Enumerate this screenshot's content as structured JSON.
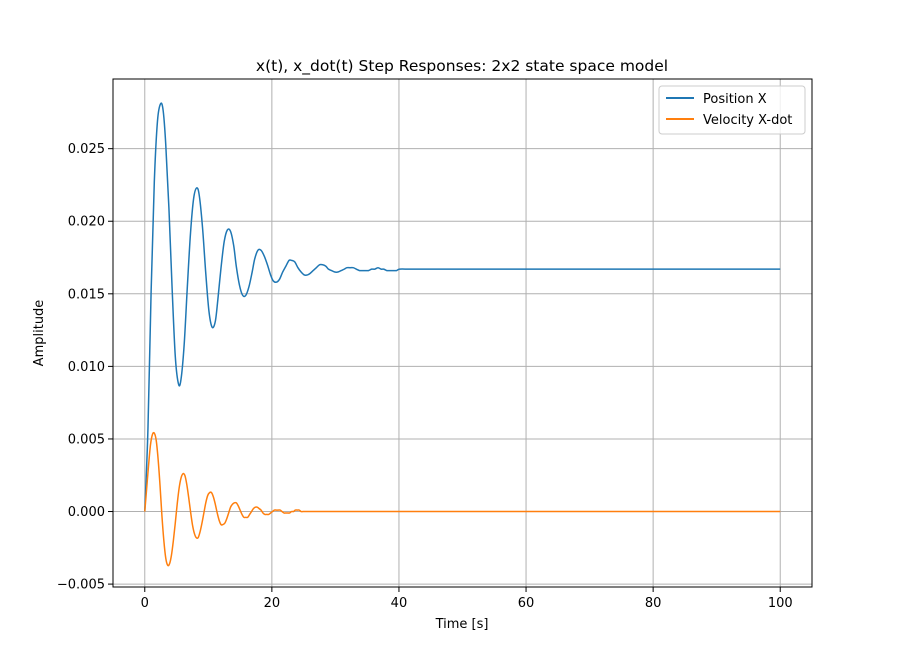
{
  "chart_data": {
    "type": "line",
    "title": "x(t), x_dot(t) Step Responses: 2x2 state space model",
    "xlabel": "Time [s]",
    "ylabel": "Amplitude",
    "xlim": [
      -5,
      105
    ],
    "ylim": [
      -0.0052,
      0.0298
    ],
    "xticks": [
      0,
      20,
      40,
      60,
      80,
      100
    ],
    "xtick_labels": [
      "0",
      "20",
      "40",
      "60",
      "80",
      "100"
    ],
    "yticks": [
      -0.005,
      0.0,
      0.005,
      0.01,
      0.015,
      0.02,
      0.025
    ],
    "ytick_labels": [
      "−0.005",
      "0.000",
      "0.005",
      "0.010",
      "0.015",
      "0.020",
      "0.025"
    ],
    "grid": true,
    "legend_position": "top-right",
    "series": [
      {
        "name": "Position X",
        "color": "#1f77b4",
        "x": [
          0,
          0.5,
          1.0,
          1.5,
          2.0,
          2.5,
          2.9,
          3.3,
          3.8,
          4.3,
          4.8,
          5.3,
          5.7,
          6.2,
          6.7,
          7.2,
          7.7,
          8.2,
          8.6,
          9.1,
          9.6,
          10.1,
          10.6,
          11.1,
          11.5,
          12.0,
          12.5,
          13.0,
          13.5,
          14.0,
          14.4,
          14.9,
          15.4,
          15.9,
          16.4,
          16.9,
          17.3,
          17.8,
          18.3,
          18.8,
          19.3,
          19.8,
          20.2,
          20.7,
          21.2,
          21.7,
          22.2,
          22.7,
          23.1,
          23.6,
          24.1,
          24.6,
          25.1,
          25.6,
          26.0,
          26.5,
          27.0,
          27.5,
          28.0,
          28.5,
          28.9,
          29.4,
          29.9,
          30.4,
          30.9,
          31.4,
          31.8,
          32.3,
          32.8,
          33.3,
          33.8,
          34.3,
          34.7,
          35.2,
          35.7,
          36.2,
          36.7,
          37.2,
          37.6,
          38.1,
          38.6,
          39.1,
          39.6,
          40.1,
          41.5,
          43.0,
          44.5,
          46.0,
          47.5,
          49.0,
          50.5,
          52.0,
          53.5,
          55.0,
          57.0,
          60.0,
          65.0,
          70.0,
          80.0,
          90.0,
          100.0
        ],
        "values": [
          0.0,
          0.0057,
          0.0152,
          0.0227,
          0.0269,
          0.0281,
          0.0276,
          0.0253,
          0.0209,
          0.0154,
          0.0107,
          0.0088,
          0.0091,
          0.0115,
          0.0155,
          0.0192,
          0.0216,
          0.0223,
          0.0217,
          0.0195,
          0.0164,
          0.0138,
          0.0127,
          0.0131,
          0.0146,
          0.0168,
          0.0186,
          0.0194,
          0.0193,
          0.0183,
          0.0169,
          0.0156,
          0.0149,
          0.0149,
          0.0155,
          0.0165,
          0.0174,
          0.018,
          0.018,
          0.0176,
          0.017,
          0.0163,
          0.0159,
          0.0158,
          0.016,
          0.0165,
          0.0169,
          0.0173,
          0.0173,
          0.0172,
          0.0168,
          0.0165,
          0.0163,
          0.0163,
          0.0164,
          0.0166,
          0.0168,
          0.017,
          0.017,
          0.0169,
          0.0167,
          0.0166,
          0.0165,
          0.0165,
          0.0166,
          0.0167,
          0.0168,
          0.0168,
          0.0168,
          0.0167,
          0.0166,
          0.0166,
          0.0166,
          0.0166,
          0.0167,
          0.0167,
          0.0168,
          0.0167,
          0.0167,
          0.0166,
          0.0166,
          0.0166,
          0.0166,
          0.0167,
          0.0167,
          0.0167,
          0.0167,
          0.0167,
          0.0167,
          0.0167,
          0.0167,
          0.0167,
          0.0167,
          0.0167,
          0.0167,
          0.0167,
          0.0167,
          0.0167,
          0.0167,
          0.0167,
          0.0167
        ]
      },
      {
        "name": "Velocity X-dot",
        "color": "#ff7f0e",
        "x": [
          0,
          0.3,
          0.6,
          0.9,
          1.2,
          1.5,
          1.8,
          2.1,
          2.4,
          2.7,
          3.0,
          3.3,
          3.6,
          3.9,
          4.2,
          4.5,
          4.8,
          5.1,
          5.4,
          5.7,
          6.0,
          6.3,
          6.6,
          6.9,
          7.2,
          7.5,
          7.8,
          8.1,
          8.4,
          8.7,
          9.0,
          9.3,
          9.6,
          9.9,
          10.2,
          10.5,
          10.8,
          11.1,
          11.4,
          11.7,
          12.0,
          12.3,
          12.6,
          12.9,
          13.2,
          13.5,
          13.8,
          14.1,
          14.4,
          14.7,
          15.0,
          15.3,
          15.6,
          15.9,
          16.2,
          16.5,
          16.8,
          17.1,
          17.4,
          17.7,
          18.0,
          18.3,
          18.6,
          18.9,
          19.2,
          19.5,
          19.8,
          20.1,
          20.4,
          20.7,
          21.0,
          21.3,
          21.6,
          21.9,
          22.2,
          22.5,
          22.8,
          23.1,
          23.4,
          23.7,
          24.0,
          24.3,
          24.6,
          24.9,
          25.2,
          25.5,
          25.8,
          26.1,
          26.4,
          26.7,
          27.0,
          27.3,
          27.6,
          27.9,
          28.2,
          28.5,
          28.8,
          29.1,
          29.4,
          29.7,
          30.0,
          30.6,
          31.2,
          31.8,
          32.4,
          33.0,
          33.6,
          34.2,
          34.8,
          35.4,
          36.0,
          36.6,
          37.2,
          37.8,
          38.4,
          39.0,
          39.6,
          40.2,
          42.0,
          45.0,
          50.0,
          60.0,
          80.0,
          100.0
        ],
        "values": [
          0.0,
          0.0016,
          0.0032,
          0.0046,
          0.0053,
          0.0054,
          0.0049,
          0.0036,
          0.0018,
          -0.0003,
          -0.002,
          -0.0032,
          -0.0037,
          -0.0036,
          -0.003,
          -0.002,
          -0.0008,
          0.0005,
          0.0016,
          0.0023,
          0.0026,
          0.0025,
          0.0019,
          0.001,
          0.0,
          -0.0009,
          -0.0015,
          -0.0018,
          -0.0018,
          -0.0014,
          -0.0008,
          -0.0001,
          0.0006,
          0.0011,
          0.0013,
          0.0013,
          0.001,
          0.0005,
          -0.0001,
          -0.0006,
          -0.0009,
          -0.0009,
          -0.0008,
          -0.0005,
          -0.0001,
          0.0003,
          0.0005,
          0.0006,
          0.0006,
          0.0004,
          0.0001,
          -0.0002,
          -0.0004,
          -0.0004,
          -0.0004,
          -0.0002,
          0.0,
          0.0002,
          0.0003,
          0.0003,
          0.0002,
          0.0001,
          -0.0001,
          -0.0002,
          -0.0002,
          -0.0002,
          -0.0001,
          0.0,
          0.0001,
          0.0001,
          0.0001,
          0.0001,
          0.0,
          -0.0001,
          -0.0001,
          -0.0001,
          -0.0001,
          0.0,
          0.0,
          0.0001,
          0.0001,
          0.0001,
          0.0,
          0.0,
          0.0,
          0.0,
          0.0,
          0.0,
          0.0,
          0.0,
          0.0,
          0.0,
          0.0,
          0.0,
          0.0,
          0.0,
          0.0,
          0.0,
          0.0,
          0.0,
          0.0,
          0.0,
          0.0,
          0.0,
          0.0,
          0.0,
          0.0,
          0.0,
          0.0,
          0.0,
          0.0,
          0.0,
          0.0,
          0.0,
          0.0,
          0.0,
          0.0,
          0.0,
          0.0,
          0.0,
          0.0,
          0.0,
          0.0,
          0.0
        ]
      }
    ]
  }
}
